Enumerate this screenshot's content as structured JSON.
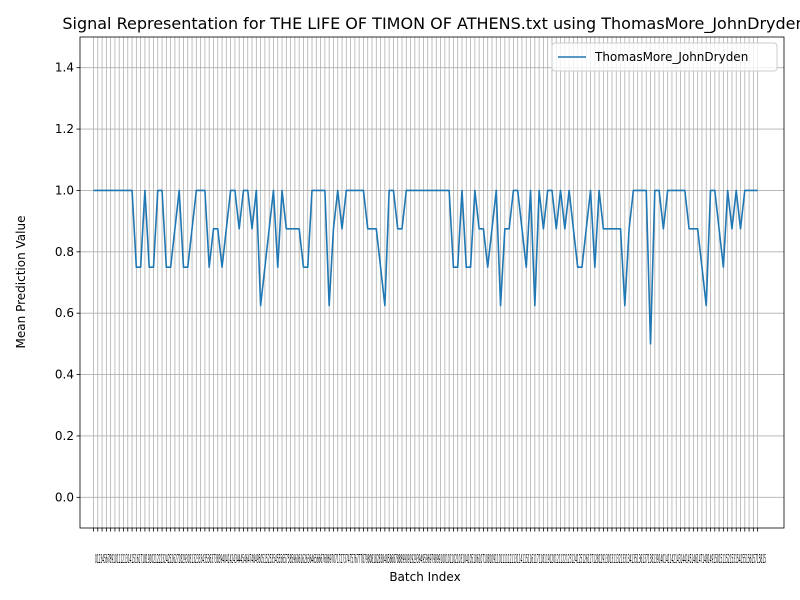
{
  "chart_data": {
    "type": "line",
    "title": "Signal Representation for THE LIFE OF TIMON OF ATHENS.txt using ThomasMore_JohnDryden",
    "xlabel": "Batch Index",
    "ylabel": "Mean Prediction Value",
    "ylim": [
      -0.1,
      1.5
    ],
    "xlim": [
      -3.15,
      161.15
    ],
    "yticks": [
      0.0,
      0.2,
      0.4,
      0.6,
      0.8,
      1.0,
      1.2,
      1.4
    ],
    "xtick_labels_raw": "012345678910111213141516171819202122232425262728293031323334353637383940414243444546474849505152535455565758596061626364656667686970717273747576777879808182838485868788899091929394959697989910010110210310410510610710810911011111211311411511611711811912012112212312412512612712812913013113213313413513613713813914014114214314414514614714814915015115215315415515615715815",
    "grid": true,
    "legend_position": "upper right",
    "line_color": "#1f77b4",
    "series": [
      {
        "name": "ThomasMore_JohnDryden",
        "values": [
          1.0,
          1.0,
          1.0,
          1.0,
          1.0,
          1.0,
          1.0,
          1.0,
          1.0,
          1.0,
          0.75,
          0.75,
          1.0,
          0.75,
          0.75,
          1.0,
          1.0,
          0.75,
          0.75,
          0.875,
          1.0,
          0.75,
          0.75,
          0.875,
          1.0,
          1.0,
          1.0,
          0.75,
          0.875,
          0.875,
          0.75,
          0.875,
          1.0,
          1.0,
          0.875,
          1.0,
          1.0,
          0.875,
          1.0,
          0.625,
          0.75,
          0.875,
          1.0,
          0.75,
          1.0,
          0.875,
          0.875,
          0.875,
          0.875,
          0.75,
          0.75,
          1.0,
          1.0,
          1.0,
          1.0,
          0.625,
          0.875,
          1.0,
          0.875,
          1.0,
          1.0,
          1.0,
          1.0,
          1.0,
          0.875,
          0.875,
          0.875,
          0.75,
          0.625,
          1.0,
          1.0,
          0.875,
          0.875,
          1.0,
          1.0,
          1.0,
          1.0,
          1.0,
          1.0,
          1.0,
          1.0,
          1.0,
          1.0,
          1.0,
          0.75,
          0.75,
          1.0,
          0.75,
          0.75,
          1.0,
          0.875,
          0.875,
          0.75,
          0.875,
          1.0,
          0.625,
          0.875,
          0.875,
          1.0,
          1.0,
          0.875,
          0.75,
          1.0,
          0.625,
          1.0,
          0.875,
          1.0,
          1.0,
          0.875,
          1.0,
          0.875,
          1.0,
          0.875,
          0.75,
          0.75,
          0.875,
          1.0,
          0.75,
          1.0,
          0.875,
          0.875,
          0.875,
          0.875,
          0.875,
          0.625,
          0.875,
          1.0,
          1.0,
          1.0,
          1.0,
          0.5,
          1.0,
          1.0,
          0.875,
          1.0,
          1.0,
          1.0,
          1.0,
          1.0,
          0.875,
          0.875,
          0.875,
          0.75,
          0.625,
          1.0,
          1.0,
          0.875,
          0.75,
          1.0,
          0.875,
          1.0,
          0.875,
          1.0,
          1.0,
          1.0,
          1.0
        ]
      }
    ]
  }
}
